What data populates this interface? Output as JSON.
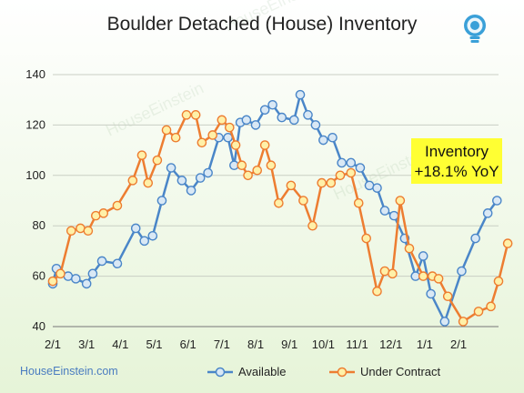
{
  "chart_data": {
    "type": "line",
    "title": "Boulder Detached (House) Inventory",
    "xlabel": "",
    "ylabel": "",
    "x_tick_labels": [
      "2/1",
      "3/1",
      "4/1",
      "5/1",
      "6/1",
      "7/1",
      "8/1",
      "9/1",
      "10/1",
      "11/1",
      "12/1",
      "1/1",
      "2/1"
    ],
    "ylim": [
      40,
      140
    ],
    "yticks": [
      40,
      60,
      80,
      100,
      120,
      140
    ],
    "grid": true,
    "legend": "bottom",
    "annotation": {
      "line1": "Inventory",
      "line2": "+18.1% YoY",
      "color": "#ffff33"
    },
    "credit": "HouseEinstein.com",
    "series": [
      {
        "name": "Available",
        "color": "#4a86c8",
        "marker_fill": "#d9e8f5",
        "points": [
          [
            0,
            57
          ],
          [
            0.12,
            63
          ],
          [
            0.5,
            60
          ],
          [
            0.75,
            59
          ],
          [
            1.1,
            57
          ],
          [
            1.3,
            61
          ],
          [
            1.6,
            66
          ],
          [
            2.1,
            65
          ],
          [
            2.7,
            79
          ],
          [
            2.98,
            74
          ],
          [
            3.25,
            76
          ],
          [
            3.55,
            90
          ],
          [
            3.85,
            103
          ],
          [
            4.2,
            98
          ],
          [
            4.5,
            94
          ],
          [
            4.8,
            99
          ],
          [
            5.05,
            101
          ],
          [
            5.4,
            115
          ],
          [
            5.7,
            115
          ],
          [
            5.9,
            104
          ],
          [
            6.1,
            121
          ],
          [
            6.3,
            122
          ],
          [
            6.6,
            120
          ],
          [
            6.9,
            126
          ],
          [
            7.15,
            128
          ],
          [
            7.45,
            123
          ],
          [
            7.85,
            122
          ],
          [
            8.05,
            132
          ],
          [
            8.3,
            124
          ],
          [
            8.55,
            120
          ],
          [
            8.8,
            114
          ],
          [
            9.1,
            115
          ],
          [
            9.4,
            105
          ],
          [
            9.7,
            105
          ],
          [
            10.0,
            103
          ],
          [
            10.3,
            96
          ],
          [
            10.55,
            95
          ],
          [
            10.8,
            86
          ],
          [
            11.1,
            84
          ],
          [
            11.45,
            75
          ],
          [
            11.8,
            60
          ],
          [
            12.05,
            68
          ],
          [
            12.3,
            53
          ],
          [
            12.75,
            42
          ],
          [
            13.3,
            62
          ],
          [
            13.75,
            75
          ],
          [
            14.15,
            85
          ],
          [
            14.45,
            90
          ]
        ]
      },
      {
        "name": "Under Contract",
        "color": "#ed7d31",
        "marker_fill": "#fff0a8",
        "points": [
          [
            0,
            58
          ],
          [
            0.25,
            61
          ],
          [
            0.6,
            78
          ],
          [
            0.9,
            79
          ],
          [
            1.15,
            78
          ],
          [
            1.4,
            84
          ],
          [
            1.65,
            85
          ],
          [
            2.1,
            88
          ],
          [
            2.6,
            98
          ],
          [
            2.9,
            108
          ],
          [
            3.1,
            97
          ],
          [
            3.4,
            106
          ],
          [
            3.7,
            118
          ],
          [
            4.0,
            115
          ],
          [
            4.35,
            124
          ],
          [
            4.65,
            124
          ],
          [
            4.85,
            113
          ],
          [
            5.2,
            116
          ],
          [
            5.5,
            122
          ],
          [
            5.75,
            119
          ],
          [
            5.95,
            112
          ],
          [
            6.15,
            104
          ],
          [
            6.35,
            100
          ],
          [
            6.65,
            102
          ],
          [
            6.9,
            112
          ],
          [
            7.1,
            104
          ],
          [
            7.35,
            89
          ],
          [
            7.75,
            96
          ],
          [
            8.15,
            90
          ],
          [
            8.45,
            80
          ],
          [
            8.75,
            97
          ],
          [
            9.05,
            97
          ],
          [
            9.35,
            100
          ],
          [
            9.7,
            101
          ],
          [
            9.95,
            89
          ],
          [
            10.2,
            75
          ],
          [
            10.55,
            54
          ],
          [
            10.8,
            62
          ],
          [
            11.05,
            61
          ],
          [
            11.3,
            90
          ],
          [
            11.6,
            71
          ],
          [
            12.05,
            60
          ],
          [
            12.35,
            60
          ],
          [
            12.55,
            59
          ],
          [
            12.85,
            52
          ],
          [
            13.35,
            42
          ],
          [
            13.85,
            46
          ],
          [
            14.25,
            48
          ],
          [
            14.5,
            58
          ],
          [
            14.8,
            73
          ]
        ]
      }
    ]
  }
}
